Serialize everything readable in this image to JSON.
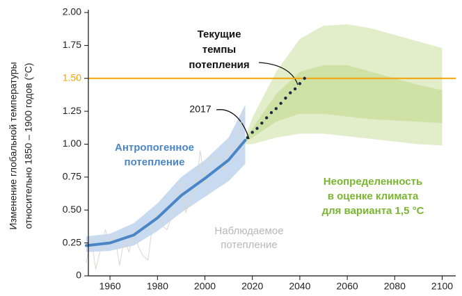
{
  "chart_data": {
    "type": "line",
    "xlim": [
      1950,
      2100
    ],
    "ylim": [
      0,
      2
    ],
    "xticks": [
      1960,
      1980,
      2000,
      2020,
      2040,
      2060,
      2080,
      2100
    ],
    "yticks": [
      0,
      0.25,
      {
        "value": 0.5,
        "label": "0.50"
      },
      0.75,
      {
        "value": 1,
        "label": "1.00"
      },
      1.25,
      {
        "value": 1.5,
        "label": "1.50"
      },
      1.75,
      {
        "value": 2,
        "label": "2.00"
      }
    ],
    "y_label": [
      "Изменение глобальной температуры",
      "относительно 1850 – 1900 годов (°C)"
    ],
    "reference_line": {
      "value": 1.5,
      "color": "#f5a100"
    },
    "bands": [
      {
        "color": "#e2edca",
        "x": [
          2017,
          2020,
          2030,
          2040,
          2050,
          2060,
          2070,
          2080,
          2090,
          2100
        ],
        "upper": [
          1.05,
          1.2,
          1.55,
          1.8,
          1.9,
          1.91,
          1.88,
          1.83,
          1.78,
          1.73
        ],
        "lower": [
          1.0,
          1.0,
          1.05,
          1.08,
          1.08,
          1.06,
          1.04,
          1.02,
          1.0,
          0.99
        ]
      },
      {
        "color": "#cfe2a6",
        "x": [
          2017,
          2020,
          2030,
          2040,
          2050,
          2060,
          2070,
          2080,
          2090,
          2100
        ],
        "upper": [
          1.04,
          1.12,
          1.38,
          1.55,
          1.6,
          1.6,
          1.55,
          1.5,
          1.45,
          1.41
        ],
        "lower": [
          1.02,
          1.05,
          1.17,
          1.23,
          1.23,
          1.21,
          1.19,
          1.18,
          1.17,
          1.16
        ]
      },
      {
        "color": "#c8daef",
        "x": [
          1950,
          1960,
          1970,
          1980,
          1990,
          2000,
          2010,
          2017
        ],
        "upper": [
          0.3,
          0.32,
          0.4,
          0.55,
          0.75,
          0.88,
          1.05,
          1.3
        ],
        "lower": [
          0.18,
          0.19,
          0.23,
          0.34,
          0.48,
          0.6,
          0.72,
          0.85
        ]
      }
    ],
    "series": [
      {
        "style": "thin",
        "color": "#dcd6cb",
        "x": [
          1950,
          1952,
          1954,
          1956,
          1958,
          1960,
          1962,
          1964,
          1966,
          1968,
          1970,
          1972,
          1974,
          1976,
          1978,
          1980,
          1982,
          1984,
          1986,
          1988,
          1990,
          1992,
          1994,
          1996,
          1998,
          2000,
          2002,
          2004,
          2006,
          2008,
          2010,
          2012,
          2014,
          2016
        ],
        "values": [
          0.1,
          0.3,
          0.05,
          0.2,
          0.35,
          0.25,
          0.32,
          0.08,
          0.28,
          0.18,
          0.34,
          0.22,
          0.15,
          0.12,
          0.4,
          0.5,
          0.38,
          0.35,
          0.45,
          0.62,
          0.7,
          0.48,
          0.6,
          0.65,
          0.95,
          0.7,
          0.9,
          0.88,
          0.92,
          0.8,
          1.0,
          0.92,
          1.0,
          1.25
        ]
      },
      {
        "style": "thick",
        "color": "#4a86c5",
        "x": [
          1950,
          1960,
          1970,
          1980,
          1990,
          2000,
          2010,
          2017
        ],
        "values": [
          0.23,
          0.25,
          0.31,
          0.44,
          0.61,
          0.74,
          0.88,
          1.03
        ]
      },
      {
        "style": "dots",
        "color": "#1c2a44",
        "x": [
          2018,
          2020,
          2022,
          2024,
          2026,
          2028,
          2030,
          2032,
          2034,
          2036,
          2038,
          2040,
          2042
        ],
        "values": [
          1.05,
          1.09,
          1.12,
          1.16,
          1.2,
          1.24,
          1.27,
          1.31,
          1.35,
          1.39,
          1.42,
          1.46,
          1.5
        ]
      }
    ],
    "annotations": [
      {
        "lines": [
          "Текущие",
          "темпы",
          "потепления"
        ],
        "color": "#111111",
        "bold": true
      },
      {
        "lines": [
          "2017"
        ],
        "color": "#111111",
        "bold": false
      },
      {
        "lines": [
          "Антропогенное",
          "потепление"
        ],
        "color": "#4a86c5",
        "bold": true
      },
      {
        "lines": [
          "Неопределенность",
          "в оценке климата",
          "для варианта 1,5 °C"
        ],
        "color": "#7ab532",
        "bold": true
      },
      {
        "lines": [
          "Наблюдаемое",
          "потепление"
        ],
        "color": "#b8b8b8",
        "bold": false
      }
    ]
  }
}
